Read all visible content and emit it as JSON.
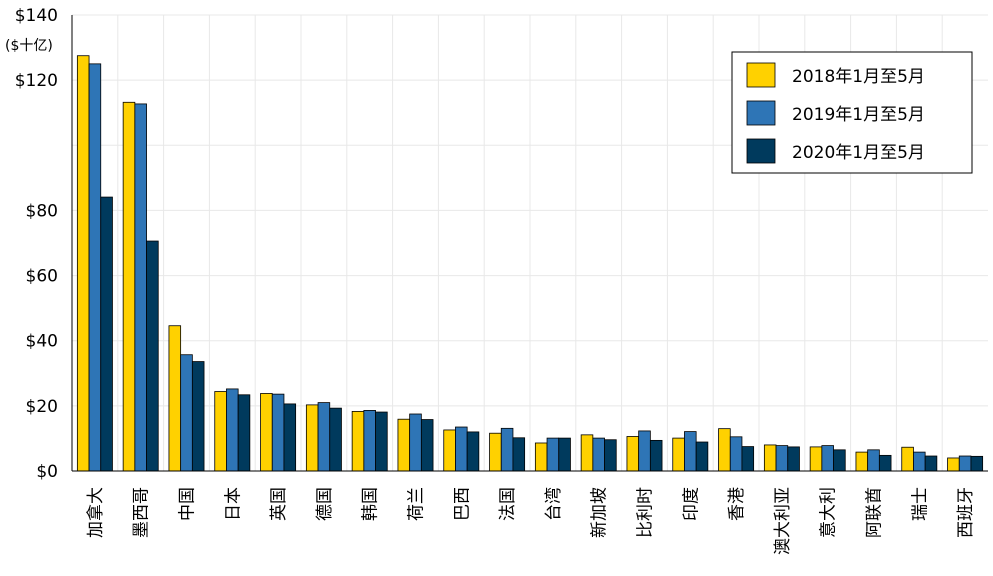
{
  "chart_data": {
    "type": "bar",
    "title": "",
    "xlabel": "",
    "ylabel": "",
    "y_unit": "($十亿)",
    "ylim": [
      0,
      140
    ],
    "ytick_values": [
      0,
      20,
      40,
      60,
      80,
      120,
      140
    ],
    "ytick_labels": [
      "$0",
      "$20",
      "$40",
      "$60",
      "$80",
      "$120",
      "$140"
    ],
    "grid": true,
    "legend_position": "top-right",
    "categories": [
      "加拿大",
      "墨西哥",
      "中国",
      "日本",
      "英国",
      "德国",
      "韩国",
      "荷兰",
      "巴西",
      "法国",
      "台湾",
      "新加坡",
      "比利时",
      "印度",
      "香港",
      "澳大利亚",
      "意大利",
      "阿联酋",
      "瑞士",
      "西班牙"
    ],
    "series": [
      {
        "name": "2018年1月至5月",
        "color": "#FFD100",
        "values": [
          127.5,
          113.2,
          44.6,
          24.4,
          23.8,
          20.3,
          18.3,
          15.9,
          12.6,
          11.6,
          8.6,
          11.1,
          10.6,
          10.1,
          13.0,
          8.0,
          7.4,
          5.8,
          7.3,
          4.0
        ]
      },
      {
        "name": "2019年1月至5月",
        "color": "#2E75B6",
        "values": [
          125.0,
          112.7,
          35.7,
          25.2,
          23.6,
          21.0,
          18.6,
          17.5,
          13.5,
          13.1,
          10.1,
          10.1,
          12.3,
          12.1,
          10.5,
          7.8,
          7.8,
          6.5,
          5.8,
          4.6
        ]
      },
      {
        "name": "2020年1月至5月",
        "color": "#003A5D",
        "values": [
          84.1,
          70.6,
          33.6,
          23.4,
          20.6,
          19.3,
          18.1,
          15.8,
          12.0,
          10.2,
          10.1,
          9.6,
          9.4,
          8.9,
          7.5,
          7.4,
          6.5,
          4.8,
          4.6,
          4.5
        ]
      }
    ]
  }
}
